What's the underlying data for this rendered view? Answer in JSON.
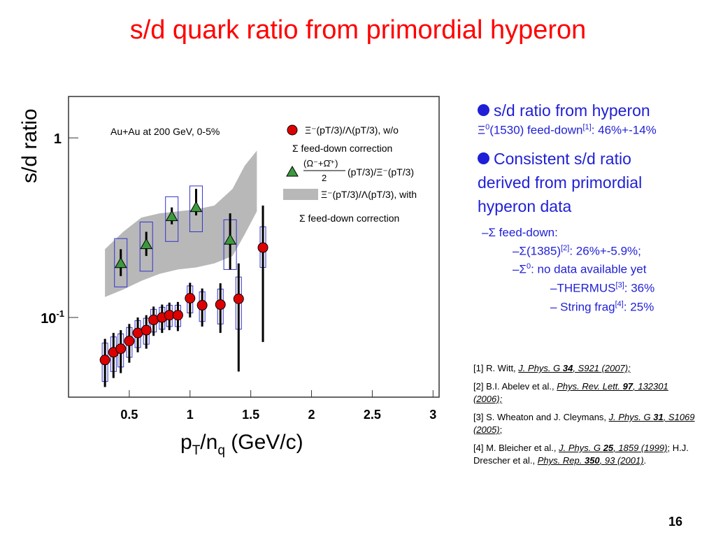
{
  "slide": {
    "title": "s/d quark ratio from primordial hyperon",
    "page_number": "16"
  },
  "chart_data": {
    "type": "scatter",
    "xlabel_main": "p",
    "xlabel_sub1": "T",
    "xlabel_mid": "/n",
    "xlabel_sub2": "q",
    "xlabel_end": " (GeV/c)",
    "ylabel": "s/d ratio",
    "annotation": "Au+Au at 200 GeV, 0-5%",
    "x_ticks": [
      "0.5",
      "1",
      "1.5",
      "2",
      "2.5",
      "3"
    ],
    "x_tick_values": [
      0.5,
      1,
      1.5,
      2,
      2.5,
      3
    ],
    "y_ticks": [
      {
        "value": 1,
        "label_base": "1",
        "label_exp": ""
      },
      {
        "value": 0.1,
        "label_base": "10",
        "label_exp": "-1"
      }
    ],
    "xlim": [
      0.0,
      3.05
    ],
    "ylim": [
      0.036,
      1.7
    ],
    "y_scale": "log",
    "colors": {
      "circles": "#dd0000",
      "triangles": "#3c9a3c",
      "band": "#b8b8b8",
      "boxes": "#3333cc"
    },
    "legend": {
      "entry1_line1": "Ξ⁻(pT/3)/Λ(pT/3), w/o",
      "entry1_line2": "Σ feed-down correction",
      "entry2_num": "(Ω⁻+Ω̄⁺)",
      "entry2_den": "2",
      "entry2_rest": "(pT/3)/Ξ⁻(pT/3)",
      "entry3_line1": "Ξ⁻(pT/3)/Λ(pT/3), with",
      "entry3_line2": "Σ feed-down correction"
    },
    "series": [
      {
        "marker": "circle",
        "x": [
          0.3,
          0.37,
          0.43,
          0.5,
          0.57,
          0.64,
          0.7,
          0.77,
          0.83,
          0.9,
          1.0,
          1.1,
          1.25,
          1.4,
          1.6
        ],
        "y": [
          0.058,
          0.064,
          0.067,
          0.074,
          0.082,
          0.085,
          0.097,
          0.1,
          0.103,
          0.103,
          0.128,
          0.117,
          0.118,
          0.127,
          0.245
        ],
        "err_lo": [
          0.041,
          0.046,
          0.049,
          0.056,
          0.064,
          0.067,
          0.079,
          0.082,
          0.085,
          0.084,
          0.1,
          0.089,
          0.082,
          0.05,
          0.073
        ],
        "err_hi": [
          0.076,
          0.082,
          0.085,
          0.092,
          0.1,
          0.103,
          0.115,
          0.118,
          0.121,
          0.122,
          0.156,
          0.145,
          0.155,
          0.2,
          0.42
        ],
        "sys_lo": [
          0.044,
          0.05,
          0.053,
          0.06,
          0.068,
          0.071,
          0.083,
          0.086,
          0.089,
          0.089,
          0.106,
          0.095,
          0.092,
          0.086,
          0.19
        ],
        "sys_hi": [
          0.072,
          0.078,
          0.081,
          0.088,
          0.096,
          0.099,
          0.111,
          0.114,
          0.117,
          0.117,
          0.15,
          0.139,
          0.144,
          0.168,
          0.32
        ]
      },
      {
        "marker": "triangle",
        "x": [
          0.43,
          0.64,
          0.85,
          1.05,
          1.33
        ],
        "y": [
          0.2,
          0.255,
          0.365,
          0.41,
          0.27
        ],
        "err_lo": [
          0.17,
          0.22,
          0.33,
          0.37,
          0.185
        ],
        "err_hi": [
          0.24,
          0.3,
          0.41,
          0.52,
          0.38
        ],
        "sys_lo": [
          0.148,
          0.181,
          0.265,
          0.3,
          0.185
        ],
        "sys_hi": [
          0.275,
          0.34,
          0.47,
          0.54,
          0.35
        ]
      },
      {
        "marker": "band",
        "x": [
          0.3,
          0.45,
          0.6,
          0.75,
          0.9,
          1.05,
          1.2,
          1.35,
          1.45,
          1.55
        ],
        "lower": [
          0.13,
          0.143,
          0.16,
          0.175,
          0.185,
          0.19,
          0.2,
          0.22,
          0.29,
          0.39
        ],
        "upper": [
          0.24,
          0.3,
          0.36,
          0.38,
          0.39,
          0.4,
          0.42,
          0.52,
          0.7,
          0.85
        ]
      }
    ]
  },
  "panel": {
    "bullet1_text": "s/d ratio from hyperon",
    "bullet1_sub_a": "Ξ",
    "bullet1_sub_sup0": "0",
    "bullet1_sub_b": "(1530) feed-down",
    "bullet1_sub_ref": "[1]",
    "bullet1_sub_c": ": 46%+-14%",
    "bullet2_line1": "Consistent s/d ratio",
    "bullet2_line2": "derived from primordial",
    "bullet2_line3": "hyperon data",
    "sub1": "–Σ feed-down:",
    "sub2_a": "–Σ(1385)",
    "sub2_ref": "[2]",
    "sub2_b": ": 26%+-5.9%;",
    "sub3_a": "–Σ",
    "sub3_sup": "0",
    "sub3_b": ": no data available yet",
    "sub4_a": "–THERMUS",
    "sub4_ref": "[3]",
    "sub4_b": ": 36%",
    "sub5_a": "– String frag",
    "sub5_ref": "[4]",
    "sub5_b": ": 25%"
  },
  "references": {
    "r1_a": "[1] R. Witt, ",
    "r1_j": "J. Phys. G ",
    "r1_v": "34",
    "r1_p": ", S921 (2007);",
    "r2_a": "[2] B.I. Abelev et al., ",
    "r2_j": "Phys. Rev. Lett. ",
    "r2_v": "97",
    "r2_p": ", 132301 (2006);",
    "r3_a": "[3] S. Wheaton and J. Cleymans, ",
    "r3_j": "J. Phys. G ",
    "r3_v": "31",
    "r3_p": ", S1069 (2005)",
    "r3_end": ";",
    "r4_a": "[4] M. Bleicher et al., ",
    "r4_j": "J. Phys. G ",
    "r4_v": "25",
    "r4_p": ", 1859 (1999)",
    "r4_b": "; H.J. Drescher et al., ",
    "r4_j2": "Phys. Rep. ",
    "r4_v2": "350",
    "r4_p2": ", 93 (2001)",
    "r4_end": "."
  }
}
